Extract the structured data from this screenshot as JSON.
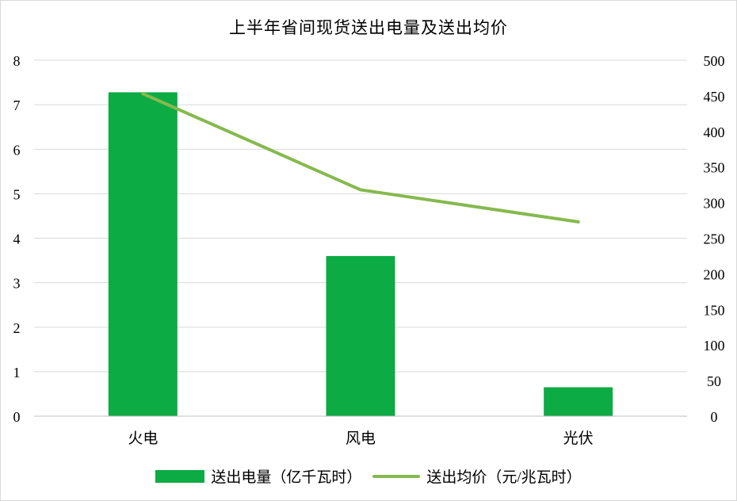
{
  "colors": {
    "bar": "#0DAB44",
    "line": "#86B94E",
    "grid": "#D9D9D9",
    "axis": "#BFBFBF"
  },
  "chart_data": {
    "type": "bar+line",
    "title": "上半年省间现货送出电量及送出均价",
    "categories": [
      "火电",
      "风电",
      "光伏"
    ],
    "series": [
      {
        "name": "送出电量（亿千瓦时）",
        "type": "bar",
        "axis": "left",
        "values": [
          7.28,
          3.6,
          0.65
        ]
      },
      {
        "name": "送出均价（元/兆瓦时）",
        "type": "line",
        "axis": "right",
        "values": [
          453,
          318,
          273
        ]
      }
    ],
    "y_left": {
      "min": 0,
      "max": 8,
      "ticks": [
        "0",
        "1",
        "2",
        "3",
        "4",
        "5",
        "6",
        "7",
        "8"
      ]
    },
    "y_right": {
      "min": 0,
      "max": 500,
      "ticks": [
        "0",
        "50",
        "100",
        "150",
        "200",
        "250",
        "300",
        "350",
        "400",
        "450",
        "500"
      ]
    },
    "grid": true,
    "legend_position": "bottom"
  }
}
